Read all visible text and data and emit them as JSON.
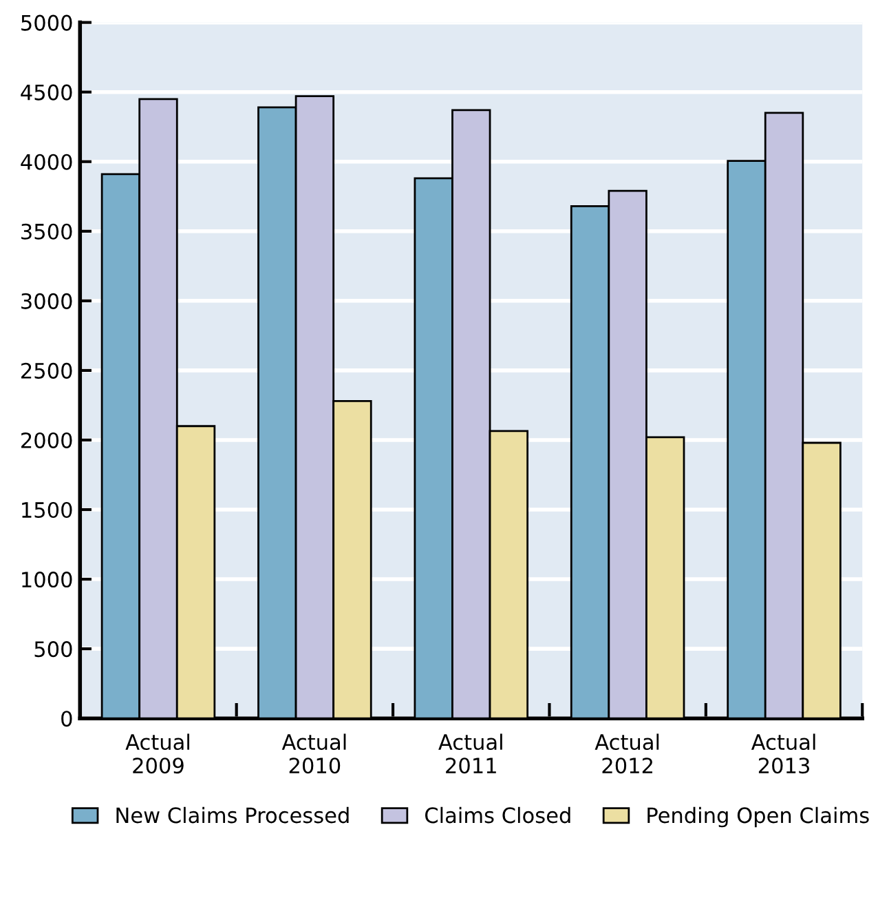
{
  "chart_data": {
    "type": "bar",
    "categories": [
      "Actual\n2009",
      "Actual\n2010",
      "Actual\n2011",
      "Actual\n2012",
      "Actual\n2013"
    ],
    "series": [
      {
        "name": "New Claims Processed",
        "color": "#7aafcb",
        "values": [
          3910,
          4390,
          3880,
          3680,
          4005
        ]
      },
      {
        "name": "Claims Closed",
        "color": "#c4c3e0",
        "values": [
          4450,
          4470,
          4370,
          3790,
          4350
        ]
      },
      {
        "name": "Pending Open Claims",
        "color": "#ecdfa2",
        "values": [
          2100,
          2280,
          2065,
          2020,
          1980
        ]
      }
    ],
    "ylim": [
      0,
      5000
    ],
    "yticks": [
      0,
      500,
      1000,
      1500,
      2000,
      2500,
      3000,
      3500,
      4000,
      4500,
      5000
    ],
    "grid": "y",
    "legend": "bottom"
  }
}
